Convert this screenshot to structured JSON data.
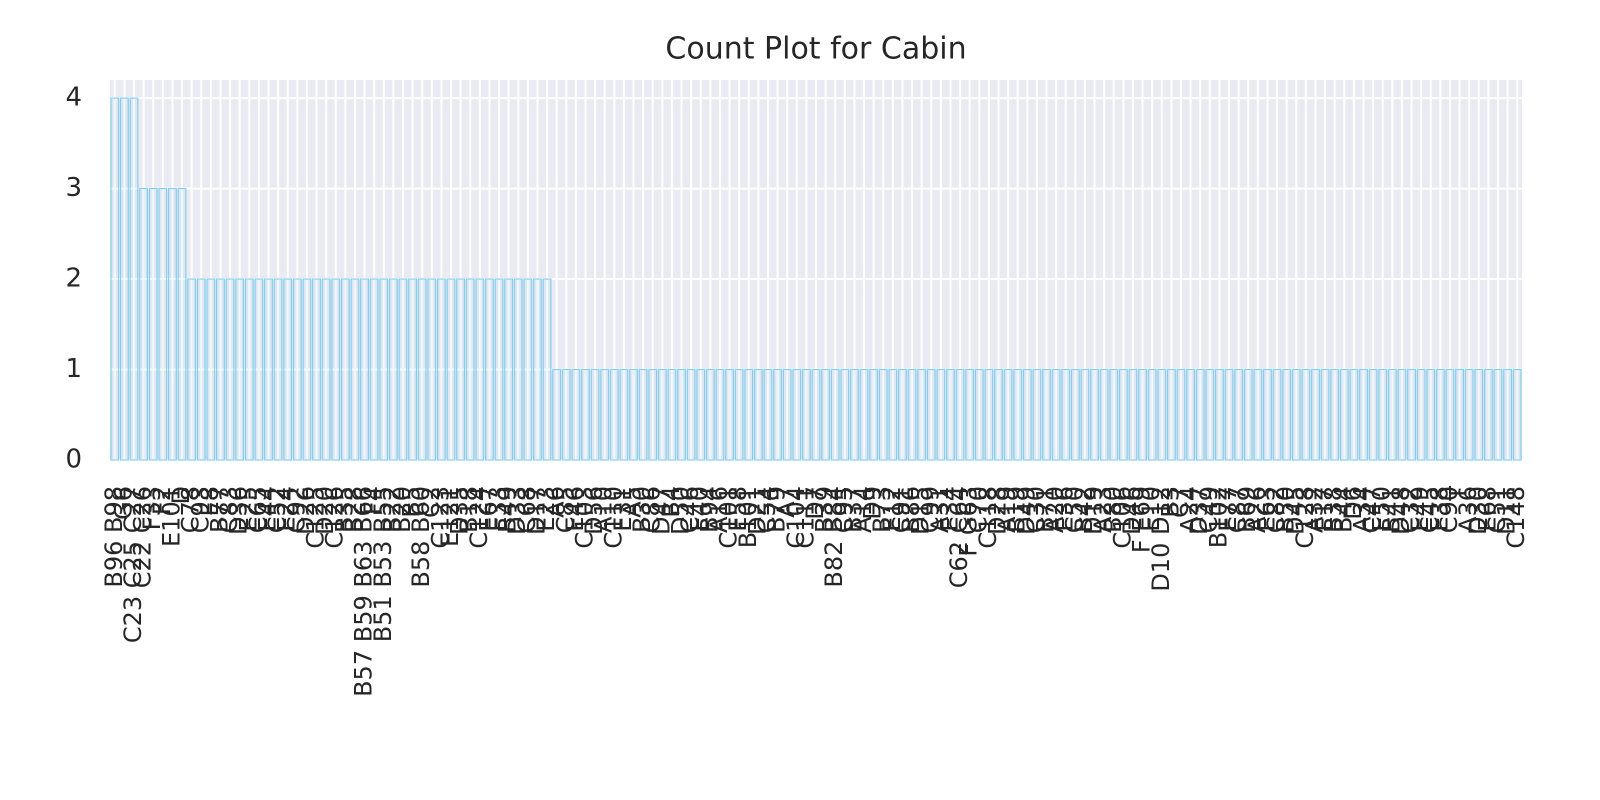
{
  "chart_data": {
    "type": "bar",
    "title": "Count Plot for Cabin",
    "categories": [
      "B96 B98",
      "G6",
      "C23 C25 C27",
      "C22 C26",
      "F33",
      "F2",
      "E101",
      "D",
      "C78",
      "C93",
      "E8",
      "B77",
      "C83",
      "D36",
      "E25",
      "C65",
      "E44",
      "C52",
      "E24",
      "C92",
      "D26",
      "C125",
      "D20",
      "C126",
      "B35",
      "B28",
      "B57 B59 B63 B66",
      "F4",
      "B51 B53 B55",
      "B22",
      "B20",
      "B5",
      "B58 B60",
      "C2",
      "C123",
      "E121",
      "D35",
      "B18",
      "C124",
      "E67",
      "E33",
      "B49",
      "D33",
      "C68",
      "D17",
      "E23",
      "A6",
      "C85",
      "E46",
      "C103",
      "D56",
      "A10",
      "C110",
      "E31",
      "A5",
      "B30",
      "C86",
      "D47",
      "B4",
      "D50",
      "C46",
      "E40",
      "B94",
      "A16",
      "C101",
      "E58",
      "B101",
      "D21",
      "C54",
      "B79",
      "A7",
      "C104",
      "C111",
      "D7",
      "B39",
      "B82 B84",
      "C95",
      "B37",
      "A14",
      "D9",
      "B73",
      "E12",
      "C91",
      "B86",
      "D15",
      "C99",
      "A31",
      "E34",
      "C62 C64",
      "F G63",
      "C70",
      "C118",
      "D28",
      "A19",
      "B19",
      "D49",
      "C30",
      "B71",
      "A20",
      "E36",
      "C50",
      "B42",
      "D19",
      "A23",
      "B80",
      "C106",
      "D46",
      "F E69",
      "E10",
      "D10 D12",
      "B3",
      "C7",
      "A24",
      "D37",
      "C49",
      "B102",
      "E77",
      "C87",
      "B69",
      "A26",
      "E63",
      "C82",
      "B50",
      "D45",
      "C128",
      "A32",
      "E17",
      "B38",
      "B44",
      "D6",
      "A34",
      "C47",
      "E50",
      "B41",
      "D48",
      "C32",
      "E49",
      "C45",
      "E38",
      "C90",
      "T",
      "A36",
      "D30",
      "E68",
      "C51",
      "D11",
      "C148"
    ],
    "values": [
      4,
      4,
      4,
      3,
      3,
      3,
      3,
      3,
      2,
      2,
      2,
      2,
      2,
      2,
      2,
      2,
      2,
      2,
      2,
      2,
      2,
      2,
      2,
      2,
      2,
      2,
      2,
      2,
      2,
      2,
      2,
      2,
      2,
      2,
      2,
      2,
      2,
      2,
      2,
      2,
      2,
      2,
      2,
      2,
      2,
      2,
      1,
      1,
      1,
      1,
      1,
      1,
      1,
      1,
      1,
      1,
      1,
      1,
      1,
      1,
      1,
      1,
      1,
      1,
      1,
      1,
      1,
      1,
      1,
      1,
      1,
      1,
      1,
      1,
      1,
      1,
      1,
      1,
      1,
      1,
      1,
      1,
      1,
      1,
      1,
      1,
      1,
      1,
      1,
      1,
      1,
      1,
      1,
      1,
      1,
      1,
      1,
      1,
      1,
      1,
      1,
      1,
      1,
      1,
      1,
      1,
      1,
      1,
      1,
      1,
      1,
      1,
      1,
      1,
      1,
      1,
      1,
      1,
      1,
      1,
      1,
      1,
      1,
      1,
      1,
      1,
      1,
      1,
      1,
      1,
      1,
      1,
      1,
      1,
      1,
      1,
      1,
      1,
      1,
      1,
      1,
      1,
      1,
      1,
      1,
      1,
      1
    ],
    "color": "#87ceeb",
    "ylim": [
      0,
      4.2
    ],
    "yticks": [
      0,
      1,
      2,
      3,
      4
    ],
    "grid": true
  }
}
